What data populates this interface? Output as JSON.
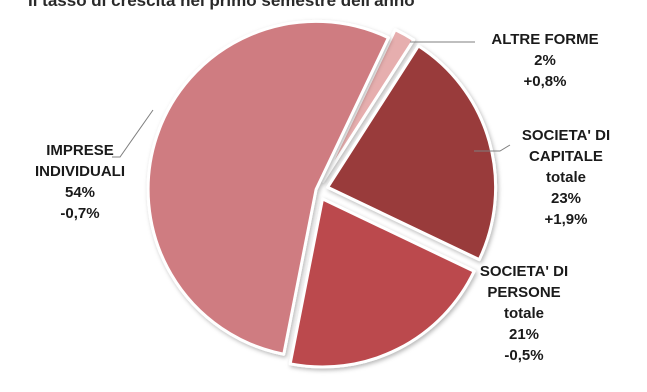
{
  "chart_data": {
    "type": "pie",
    "title": "Il tasso di crescita nel primo semestre dell'anno",
    "exploded": true,
    "slices": [
      {
        "name": "ALTRE FORME",
        "value": 2,
        "pct_label": "2%",
        "change": "+0,8%",
        "label_lines": [
          "ALTRE FORME",
          "2%",
          "+0,8%"
        ],
        "color": "#e6aeae"
      },
      {
        "name": "SOCIETA' DI CAPITALE totale",
        "value": 23,
        "pct_label": "23%",
        "change": "+1,9%",
        "label_lines": [
          "SOCIETA' DI",
          "CAPITALE",
          "totale",
          "23%",
          "+1,9%"
        ],
        "color": "#993b3b"
      },
      {
        "name": "SOCIETA' DI PERSONE totale",
        "value": 21,
        "pct_label": "21%",
        "change": "-0,5%",
        "label_lines": [
          "SOCIETA' DI",
          "PERSONE",
          "totale",
          "21%",
          "-0,5%"
        ],
        "color": "#bb4a4e"
      },
      {
        "name": "IMPRESE INDIVIDUALI",
        "value": 54,
        "pct_label": "54%",
        "change": "-0,7%",
        "label_lines": [
          "IMPRESE",
          "INDIVIDUALI",
          "54%",
          "-0,7%"
        ],
        "color": "#cf7c81"
      }
    ]
  }
}
